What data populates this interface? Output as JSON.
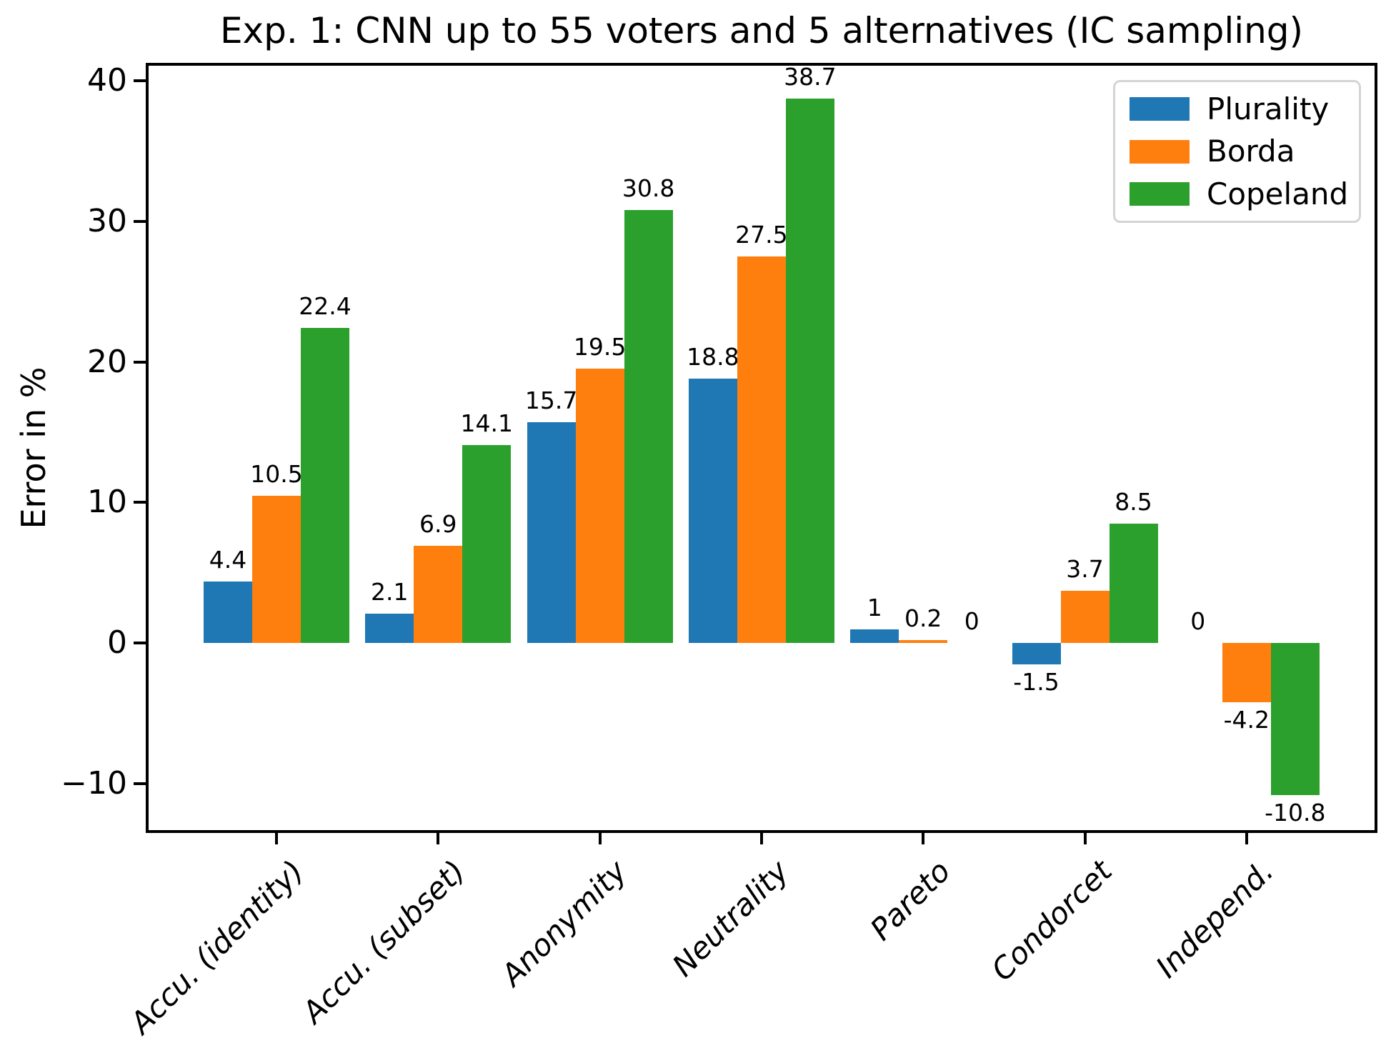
{
  "chart_data": {
    "type": "bar",
    "title": "Exp. 1: CNN up to 55 voters and 5 alternatives (IC sampling)",
    "ylabel": "Error in %",
    "xlabel": "",
    "categories": [
      "Accu. (identity)",
      "Accu. (subset)",
      "Anonymity",
      "Neutrality",
      "Pareto",
      "Condorcet",
      "Independ."
    ],
    "series": [
      {
        "name": "Plurality",
        "color": "#1f77b4",
        "values": [
          4.4,
          2.1,
          15.7,
          18.8,
          1,
          -1.5,
          0
        ],
        "labels": [
          "4.4",
          "2.1",
          "15.7",
          "18.8",
          "1",
          "-1.5",
          "0"
        ]
      },
      {
        "name": "Borda",
        "color": "#ff7f0e",
        "values": [
          10.5,
          6.9,
          19.5,
          27.5,
          0.2,
          3.7,
          -4.2
        ],
        "labels": [
          "10.5",
          "6.9",
          "19.5",
          "27.5",
          "0.2",
          "3.7",
          "-4.2"
        ]
      },
      {
        "name": "Copeland",
        "color": "#2ca02c",
        "values": [
          22.4,
          14.1,
          30.8,
          38.7,
          0,
          8.5,
          -10.8
        ],
        "labels": [
          "22.4",
          "14.1",
          "30.8",
          "38.7",
          "0",
          "8.5",
          "-10.8"
        ]
      }
    ],
    "yticks": [
      {
        "value": 40,
        "label": "40"
      },
      {
        "value": 30,
        "label": "30"
      },
      {
        "value": 20,
        "label": "20"
      },
      {
        "value": 10,
        "label": "10"
      },
      {
        "value": 0,
        "label": "0"
      },
      {
        "value": -10,
        "label": "−10"
      }
    ],
    "ylim": [
      -13.275,
      41.16
    ],
    "grid": false,
    "legend": {
      "position": "upper right",
      "entries": [
        "Plurality",
        "Borda",
        "Copeland"
      ]
    }
  }
}
